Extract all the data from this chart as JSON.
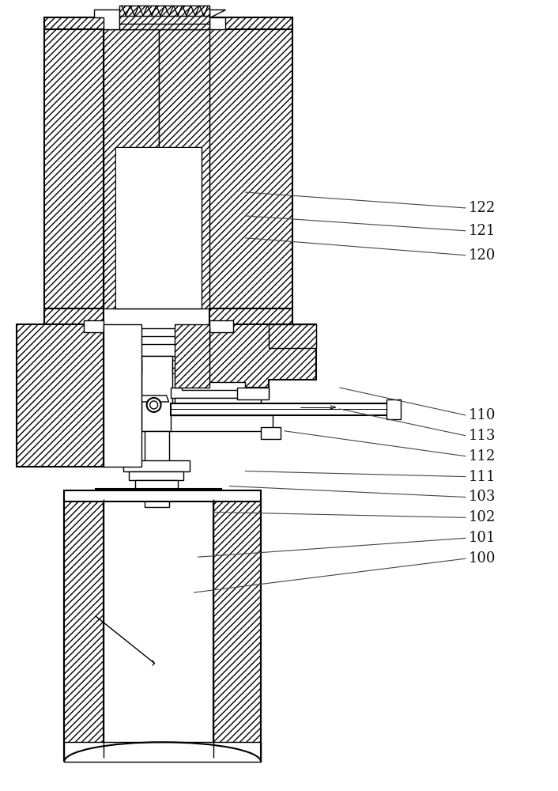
{
  "bg_color": "#ffffff",
  "figsize": [
    7.06,
    10.0
  ],
  "dpi": 100,
  "annotations": [
    [
      "122",
      [
        440,
        248
      ],
      [
        595,
        262
      ]
    ],
    [
      "121",
      [
        440,
        278
      ],
      [
        595,
        295
      ]
    ],
    [
      "120",
      [
        440,
        305
      ],
      [
        595,
        328
      ]
    ],
    [
      "110",
      [
        490,
        508
      ],
      [
        595,
        528
      ]
    ],
    [
      "113",
      [
        490,
        530
      ],
      [
        595,
        555
      ]
    ],
    [
      "112",
      [
        420,
        570
      ],
      [
        595,
        582
      ]
    ],
    [
      "111",
      [
        340,
        600
      ],
      [
        595,
        608
      ]
    ],
    [
      "103",
      [
        320,
        625
      ],
      [
        595,
        635
      ]
    ],
    [
      "102",
      [
        300,
        650
      ],
      [
        595,
        660
      ]
    ],
    [
      "101",
      [
        260,
        715
      ],
      [
        595,
        685
      ]
    ],
    [
      "100",
      [
        260,
        760
      ],
      [
        595,
        715
      ]
    ]
  ]
}
